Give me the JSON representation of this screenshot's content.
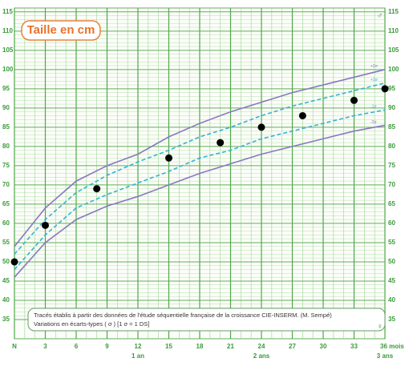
{
  "chart_data": {
    "type": "line",
    "title": "Taille en cm",
    "note": [
      "Tracés établis à partir des données de l'étude séquentielle française de la croissance CIE-INSERM. (M. Sempé)",
      "Variations en écarts-types ( σ ) [1 σ = 1 DS]"
    ],
    "sex_symbols": [
      "♂",
      "♀"
    ],
    "x": [
      0,
      3,
      6,
      9,
      12,
      15,
      18,
      21,
      24,
      27,
      30,
      33,
      36
    ],
    "series": [
      {
        "name": "+2σ",
        "color": "#8a78c0",
        "dashed": false,
        "values": [
          54,
          64,
          71,
          75,
          78,
          82.5,
          86,
          89,
          91.5,
          94,
          96,
          98,
          100
        ]
      },
      {
        "name": "+1σ",
        "color": "#35b2d8",
        "dashed": true,
        "values": [
          52,
          61,
          68,
          72.5,
          76,
          79,
          82.5,
          85,
          88,
          90.5,
          92.5,
          94.5,
          96.5
        ]
      },
      {
        "name": "-1σ",
        "color": "#35b2d8",
        "dashed": true,
        "values": [
          48,
          57,
          64,
          67.5,
          70.5,
          73.5,
          77,
          79,
          82,
          84,
          86,
          88,
          89.5
        ]
      },
      {
        "name": "-2σ",
        "color": "#8a78c0",
        "dashed": false,
        "values": [
          46,
          55,
          61,
          64.5,
          67,
          70,
          73,
          75.5,
          78,
          80,
          82,
          84,
          85.5
        ]
      }
    ],
    "measurements": {
      "color": "#000000",
      "x": [
        0,
        3,
        8,
        15,
        20,
        24,
        28,
        33,
        36
      ],
      "values": [
        50,
        59.5,
        69,
        77,
        81,
        85,
        88,
        92,
        95
      ]
    },
    "xlim": [
      0,
      36
    ],
    "ylim": [
      30,
      116
    ],
    "xticks": [
      {
        "value": 0,
        "label": "N"
      },
      3,
      6,
      9,
      12,
      15,
      18,
      21,
      24,
      27,
      30,
      33,
      {
        "value": 36,
        "label": "36 mois"
      }
    ],
    "x_sublabels": [
      {
        "value": 12,
        "label": "1 an"
      },
      {
        "value": 24,
        "label": "2 ans"
      },
      {
        "value": 36,
        "label": "3 ans"
      }
    ],
    "yticks": [
      35,
      40,
      45,
      50,
      55,
      60,
      65,
      70,
      75,
      80,
      85,
      90,
      95,
      100,
      105,
      110,
      115
    ],
    "grid": true
  }
}
